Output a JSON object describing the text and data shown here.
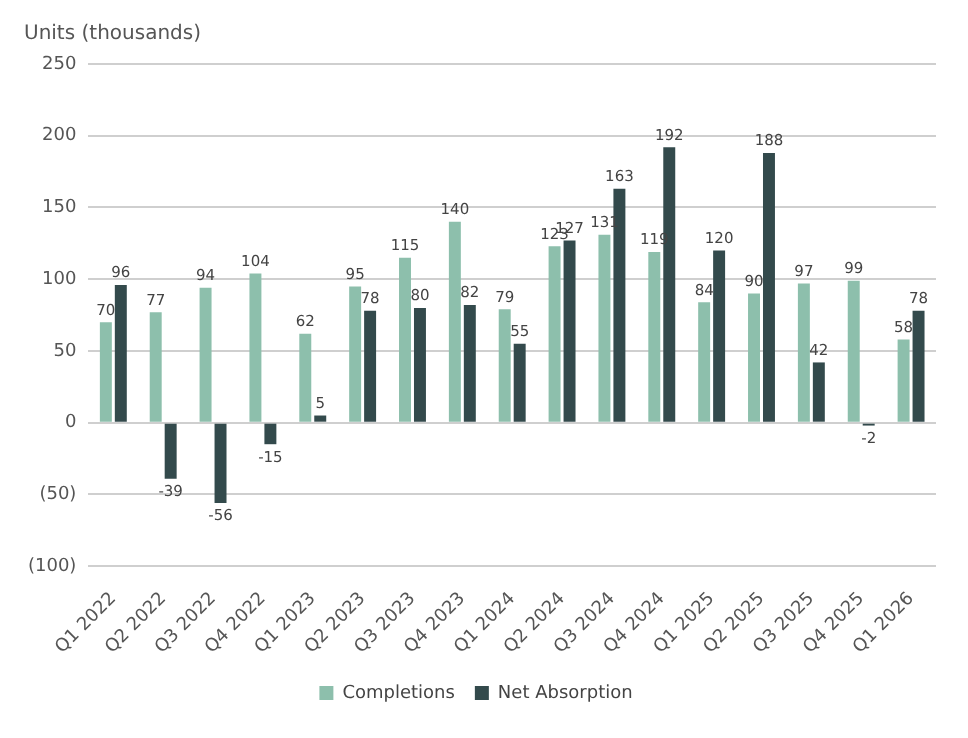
{
  "chart_data": {
    "type": "bar",
    "ylabel": "Units (thousands)",
    "categories": [
      "Q1 2022",
      "Q2 2022",
      "Q3 2022",
      "Q4 2022",
      "Q1 2023",
      "Q2 2023",
      "Q3 2023",
      "Q4 2023",
      "Q1 2024",
      "Q2 2024",
      "Q3 2024",
      "Q4 2024",
      "Q1 2025",
      "Q2 2025",
      "Q3 2025",
      "Q4 2025",
      "Q1 2026"
    ],
    "series": [
      {
        "name": "Completions",
        "color": "#8dbfac",
        "values": [
          70,
          77,
          94,
          104,
          62,
          95,
          115,
          140,
          79,
          123,
          131,
          119,
          84,
          90,
          97,
          99,
          58
        ]
      },
      {
        "name": "Net Absorption",
        "color": "#334a4c",
        "values": [
          96,
          -39,
          -56,
          -15,
          5,
          78,
          80,
          82,
          55,
          127,
          163,
          192,
          120,
          188,
          42,
          -2,
          78
        ]
      }
    ],
    "ylim": [
      -100,
      250
    ],
    "yticks": [
      {
        "value": -100,
        "label": "(100)"
      },
      {
        "value": -50,
        "label": "(50)"
      },
      0,
      50,
      100,
      150,
      200,
      250
    ],
    "grid": "y",
    "legend": "bottom",
    "data_labels": true
  }
}
